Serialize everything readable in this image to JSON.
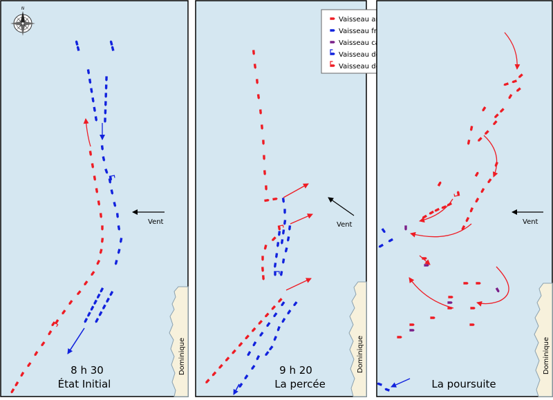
{
  "colors": {
    "sea": "#d5e7f1",
    "coast": "#f7f1dc",
    "coast_edge": "#8aa0ae",
    "english": "#ee1c24",
    "french": "#1122dd",
    "captured": "#7a1f88",
    "border": "#000000"
  },
  "compass": {
    "icon": "compass-rose-icon",
    "north_label": "N"
  },
  "legend": {
    "items": [
      {
        "label": "Vaisseau anglais",
        "kind": "english"
      },
      {
        "label": "Vaisseau français",
        "kind": "french"
      },
      {
        "label": "Vaisseau capturé",
        "kind": "captured"
      },
      {
        "label": "Vaisseau de De Grasse",
        "kind": "degrasse"
      },
      {
        "label": "Vaisseau de Rodney",
        "kind": "rodney"
      }
    ]
  },
  "panels": [
    {
      "time": "8 h 30",
      "title": "État Initial",
      "wind_label": "Vent",
      "island_label": "Dominique"
    },
    {
      "time": "9 h 20",
      "title": "La percée",
      "wind_label": "Vent",
      "island_label": "Dominique"
    },
    {
      "time": "",
      "title": "La poursuite",
      "wind_label": "Vent",
      "island_label": "Dominique"
    }
  ]
}
